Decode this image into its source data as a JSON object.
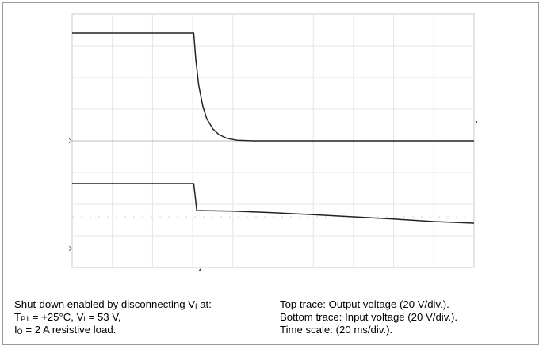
{
  "chart_data": {
    "type": "line",
    "grid": true,
    "grid_divisions": {
      "x": 10,
      "y": 8
    },
    "time_per_div_ms": 20,
    "volts_per_div": 20,
    "x_range_ms": [
      0,
      200
    ],
    "series": [
      {
        "role": "top",
        "color": "#222222",
        "points": [
          [
            0,
            3.4
          ],
          [
            60.5,
            3.4
          ],
          [
            61.5,
            2.6
          ],
          [
            63,
            1.75
          ],
          [
            65,
            1.1
          ],
          [
            67,
            0.7
          ],
          [
            70,
            0.38
          ],
          [
            73,
            0.2
          ],
          [
            77,
            0.08
          ],
          [
            82,
            0.02
          ],
          [
            90,
            0.0
          ],
          [
            200,
            0.0
          ]
        ]
      },
      {
        "role": "bottom",
        "color": "#222222",
        "points": [
          [
            0,
            -1.35
          ],
          [
            60.5,
            -1.35
          ],
          [
            61.5,
            -1.9
          ],
          [
            62,
            -2.2
          ],
          [
            80,
            -2.22
          ],
          [
            100,
            -2.27
          ],
          [
            120,
            -2.33
          ],
          [
            140,
            -2.4
          ],
          [
            160,
            -2.47
          ],
          [
            180,
            -2.55
          ],
          [
            200,
            -2.6
          ]
        ]
      }
    ],
    "caption_left": [
      "Shut-down enabled by disconnecting V",
      "I",
      " at:",
      "T",
      "P1",
      " = +25°C, V",
      "I",
      " = 53 V,",
      "I",
      "O",
      " = 2 A resistive load."
    ],
    "caption_right": [
      "Top trace: Output voltage (20 V/div.).",
      "Bottom trace: Input voltage (20 V/div.).",
      "Time scale: (20 ms/div.)."
    ]
  }
}
